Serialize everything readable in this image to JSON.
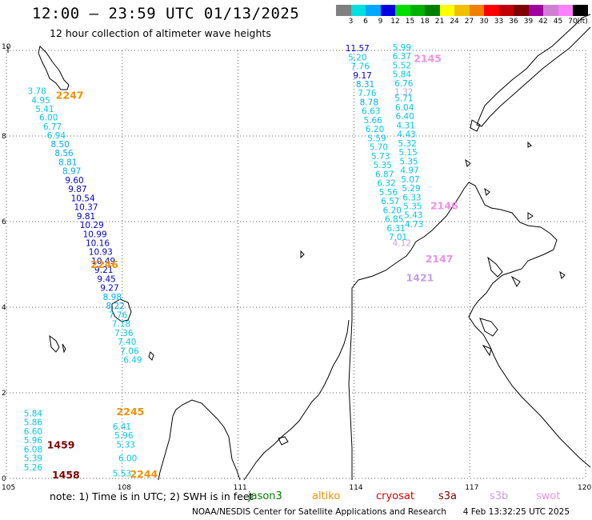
{
  "header": {
    "title": "12:00 – 23:59 UTC 01/13/2025",
    "subtitle": "12 hour collection of altimeter wave heights"
  },
  "colorbar": {
    "unit": "(ft)",
    "colors": [
      "#808080",
      "#00e0e0",
      "#00a8ff",
      "#0000e0",
      "#00e000",
      "#00b000",
      "#008000",
      "#ffff00",
      "#f0c000",
      "#f08000",
      "#ff0000",
      "#c00000",
      "#800000",
      "#a000a0",
      "#d080d0",
      "#ff80ff",
      "#000000"
    ],
    "ticks": [
      "3",
      "6",
      "9",
      "12",
      "15",
      "18",
      "21",
      "24",
      "27",
      "30",
      "33",
      "36",
      "39",
      "42",
      "45",
      "70"
    ]
  },
  "map": {
    "lat_labels": [
      "10",
      "8",
      "6",
      "4",
      "2",
      "0"
    ],
    "lon_labels": [
      "105",
      "108",
      "111",
      "114",
      "117",
      "120"
    ],
    "track_labels": [
      {
        "text": "2247",
        "color": "#f09000",
        "lon": 106.28,
        "lat": 8.87
      },
      {
        "text": "2246",
        "color": "#f09000",
        "lon": 107.18,
        "lat": 4.92
      },
      {
        "text": "2245",
        "color": "#f09000",
        "lon": 107.85,
        "lat": 1.48
      },
      {
        "text": "2244",
        "color": "#f09000",
        "lon": 108.2,
        "lat": 0.02
      },
      {
        "text": "1459",
        "color": "#800000",
        "lon": 106.05,
        "lat": 0.7
      },
      {
        "text": "1458",
        "color": "#800000",
        "lon": 106.18,
        "lat": 0.0
      },
      {
        "text": "2145",
        "color": "#f090e0",
        "lon": 115.55,
        "lat": 9.73
      },
      {
        "text": "2146",
        "color": "#f090e0",
        "lon": 115.98,
        "lat": 6.29
      },
      {
        "text": "2147",
        "color": "#f090e0",
        "lon": 115.85,
        "lat": 5.05
      },
      {
        "text": "1421",
        "color": "#c0a0e8",
        "lon": 115.35,
        "lat": 4.61
      }
    ],
    "wave_values": [
      {
        "v": "3.78",
        "c": "#00c8e8",
        "lon": 105.55,
        "lat": 8.98
      },
      {
        "v": "4.95",
        "c": "#00c8e8",
        "lon": 105.65,
        "lat": 8.77
      },
      {
        "v": "5.41",
        "c": "#00c8e8",
        "lon": 105.75,
        "lat": 8.56
      },
      {
        "v": "6.00",
        "c": "#00c8e8",
        "lon": 105.85,
        "lat": 8.36
      },
      {
        "v": "6.77",
        "c": "#00c8e8",
        "lon": 105.95,
        "lat": 8.15
      },
      {
        "v": "6.94",
        "c": "#00c8e8",
        "lon": 106.05,
        "lat": 7.94
      },
      {
        "v": "8.50",
        "c": "#00a8ff",
        "lon": 106.15,
        "lat": 7.74
      },
      {
        "v": "8.56",
        "c": "#00a8ff",
        "lon": 106.25,
        "lat": 7.53
      },
      {
        "v": "8.81",
        "c": "#00a8ff",
        "lon": 106.35,
        "lat": 7.32
      },
      {
        "v": "8.97",
        "c": "#00a8ff",
        "lon": 106.45,
        "lat": 7.11
      },
      {
        "v": "9.60",
        "c": "#0000d0",
        "lon": 106.52,
        "lat": 6.9
      },
      {
        "v": "9.87",
        "c": "#0000d0",
        "lon": 106.6,
        "lat": 6.69
      },
      {
        "v": "10.54",
        "c": "#0000d0",
        "lon": 106.67,
        "lat": 6.48
      },
      {
        "v": "10.37",
        "c": "#0000d0",
        "lon": 106.75,
        "lat": 6.27
      },
      {
        "v": "9.81",
        "c": "#0000d0",
        "lon": 106.82,
        "lat": 6.06
      },
      {
        "v": "10.29",
        "c": "#0000d0",
        "lon": 106.9,
        "lat": 5.85
      },
      {
        "v": "10.99",
        "c": "#0000d0",
        "lon": 106.98,
        "lat": 5.64
      },
      {
        "v": "10.16",
        "c": "#0000d0",
        "lon": 107.05,
        "lat": 5.43
      },
      {
        "v": "10.93",
        "c": "#0000d0",
        "lon": 107.13,
        "lat": 5.22
      },
      {
        "v": "10.49",
        "c": "#0000d0",
        "lon": 107.2,
        "lat": 5.01
      },
      {
        "v": "9.21",
        "c": "#0000d0",
        "lon": 107.28,
        "lat": 4.8
      },
      {
        "v": "9.45",
        "c": "#0000d0",
        "lon": 107.35,
        "lat": 4.59
      },
      {
        "v": "9.27",
        "c": "#0000d0",
        "lon": 107.43,
        "lat": 4.38
      },
      {
        "v": "8.98",
        "c": "#00a8ff",
        "lon": 107.5,
        "lat": 4.17
      },
      {
        "v": "8.22",
        "c": "#00a8ff",
        "lon": 107.58,
        "lat": 3.96
      },
      {
        "v": "7.76",
        "c": "#00c8e8",
        "lon": 107.65,
        "lat": 3.75
      },
      {
        "v": "7.18",
        "c": "#00c8e8",
        "lon": 107.73,
        "lat": 3.54
      },
      {
        "v": "7.36",
        "c": "#00c8e8",
        "lon": 107.8,
        "lat": 3.33
      },
      {
        "v": "7.40",
        "c": "#00c8e8",
        "lon": 107.88,
        "lat": 3.12
      },
      {
        "v": "7.06",
        "c": "#00c8e8",
        "lon": 107.95,
        "lat": 2.91
      },
      {
        "v": "6.49",
        "c": "#00c8e8",
        "lon": 108.03,
        "lat": 2.7
      },
      {
        "v": "5.84",
        "c": "#00c8e8",
        "lon": 105.45,
        "lat": 1.45
      },
      {
        "v": "5.86",
        "c": "#00c8e8",
        "lon": 105.45,
        "lat": 1.24
      },
      {
        "v": "6.60",
        "c": "#00c8e8",
        "lon": 105.45,
        "lat": 1.03
      },
      {
        "v": "5.96",
        "c": "#00c8e8",
        "lon": 105.45,
        "lat": 0.82
      },
      {
        "v": "6.08",
        "c": "#00c8e8",
        "lon": 105.45,
        "lat": 0.61
      },
      {
        "v": "5.39",
        "c": "#00c8e8",
        "lon": 105.45,
        "lat": 0.4
      },
      {
        "v": "5.26",
        "c": "#00c8e8",
        "lon": 105.45,
        "lat": 0.19
      },
      {
        "v": "6.41",
        "c": "#00c8e8",
        "lon": 107.75,
        "lat": 1.14
      },
      {
        "v": "5.96",
        "c": "#00c8e8",
        "lon": 107.8,
        "lat": 0.93
      },
      {
        "v": "5.33",
        "c": "#00c8e8",
        "lon": 107.85,
        "lat": 0.72
      },
      {
        "v": "6.00",
        "c": "#00c8e8",
        "lon": 107.9,
        "lat": 0.4
      },
      {
        "v": "5.53",
        "c": "#00c8e8",
        "lon": 107.75,
        "lat": 0.05
      },
      {
        "v": "11.57",
        "c": "#0000d0",
        "lon": 113.78,
        "lat": 9.98
      },
      {
        "v": "5.20",
        "c": "#00c8e8",
        "lon": 113.85,
        "lat": 9.77
      },
      {
        "v": "7.76",
        "c": "#00c8e8",
        "lon": 113.92,
        "lat": 9.56
      },
      {
        "v": "9.17",
        "c": "#0000d0",
        "lon": 113.98,
        "lat": 9.35
      },
      {
        "v": "8.31",
        "c": "#00a8ff",
        "lon": 114.05,
        "lat": 9.14
      },
      {
        "v": "7.76",
        "c": "#00c8e8",
        "lon": 114.1,
        "lat": 8.93
      },
      {
        "v": "8.78",
        "c": "#00a8ff",
        "lon": 114.15,
        "lat": 8.72
      },
      {
        "v": "6.63",
        "c": "#00c8e8",
        "lon": 114.2,
        "lat": 8.51
      },
      {
        "v": "5.66",
        "c": "#00c8e8",
        "lon": 114.25,
        "lat": 8.3
      },
      {
        "v": "6.20",
        "c": "#00c8e8",
        "lon": 114.3,
        "lat": 8.09
      },
      {
        "v": "5.59",
        "c": "#00c8e8",
        "lon": 114.35,
        "lat": 7.88
      },
      {
        "v": "5.70",
        "c": "#00c8e8",
        "lon": 114.4,
        "lat": 7.67
      },
      {
        "v": "5.73",
        "c": "#00c8e8",
        "lon": 114.45,
        "lat": 7.46
      },
      {
        "v": "5.35",
        "c": "#00c8e8",
        "lon": 114.5,
        "lat": 7.25
      },
      {
        "v": "6.87",
        "c": "#00c8e8",
        "lon": 114.55,
        "lat": 7.04
      },
      {
        "v": "6.32",
        "c": "#00c8e8",
        "lon": 114.6,
        "lat": 6.83
      },
      {
        "v": "5.56",
        "c": "#00c8e8",
        "lon": 114.65,
        "lat": 6.62
      },
      {
        "v": "6.57",
        "c": "#00c8e8",
        "lon": 114.7,
        "lat": 6.41
      },
      {
        "v": "6.20",
        "c": "#00c8e8",
        "lon": 114.75,
        "lat": 6.2
      },
      {
        "v": "6.85",
        "c": "#00c8e8",
        "lon": 114.8,
        "lat": 5.99
      },
      {
        "v": "6.31",
        "c": "#00c8e8",
        "lon": 114.85,
        "lat": 5.78
      },
      {
        "v": "7.01",
        "c": "#00c8e8",
        "lon": 114.9,
        "lat": 5.57
      },
      {
        "v": "5.99",
        "c": "#00c8e8",
        "lon": 115.0,
        "lat": 10.0
      },
      {
        "v": "6.37",
        "c": "#00c8e8",
        "lon": 115.0,
        "lat": 9.79
      },
      {
        "v": "5.52",
        "c": "#00c8e8",
        "lon": 115.0,
        "lat": 9.58
      },
      {
        "v": "5.84",
        "c": "#00c8e8",
        "lon": 115.0,
        "lat": 9.37
      },
      {
        "v": "6.76",
        "c": "#00c8e8",
        "lon": 115.05,
        "lat": 9.16
      },
      {
        "v": "5.71",
        "c": "#00c8e8",
        "lon": 115.05,
        "lat": 8.81
      },
      {
        "v": "6.04",
        "c": "#00c8e8",
        "lon": 115.07,
        "lat": 8.6
      },
      {
        "v": "6.40",
        "c": "#00c8e8",
        "lon": 115.08,
        "lat": 8.39
      },
      {
        "v": "4.31",
        "c": "#00c8e8",
        "lon": 115.1,
        "lat": 8.18
      },
      {
        "v": "4.43",
        "c": "#00c8e8",
        "lon": 115.12,
        "lat": 7.97
      },
      {
        "v": "5.32",
        "c": "#00c8e8",
        "lon": 115.14,
        "lat": 7.76
      },
      {
        "v": "5.15",
        "c": "#00c8e8",
        "lon": 115.16,
        "lat": 7.55
      },
      {
        "v": "5.35",
        "c": "#00c8e8",
        "lon": 115.18,
        "lat": 7.34
      },
      {
        "v": "4.97",
        "c": "#00c8e8",
        "lon": 115.2,
        "lat": 7.13
      },
      {
        "v": "5.07",
        "c": "#00c8e8",
        "lon": 115.22,
        "lat": 6.92
      },
      {
        "v": "5.29",
        "c": "#00c8e8",
        "lon": 115.24,
        "lat": 6.71
      },
      {
        "v": "6.33",
        "c": "#00c8e8",
        "lon": 115.26,
        "lat": 6.5
      },
      {
        "v": "5.35",
        "c": "#00c8e8",
        "lon": 115.28,
        "lat": 6.29
      },
      {
        "v": "5.43",
        "c": "#00c8e8",
        "lon": 115.3,
        "lat": 6.08
      },
      {
        "v": "4.73",
        "c": "#00c8e8",
        "lon": 115.32,
        "lat": 5.87
      },
      {
        "v": "4.12",
        "c": "#c0a0e8",
        "lon": 115.0,
        "lat": 5.43
      },
      {
        "v": "1.32",
        "c": "#c0a0e8",
        "lon": 115.05,
        "lat": 8.96
      }
    ]
  },
  "legend": {
    "note": "note:  1) Time is in UTC;  2) SWH is in feet",
    "satellites": [
      {
        "name": "jason3",
        "color": "#008000"
      },
      {
        "name": "altiko",
        "color": "#f09000"
      },
      {
        "name": "cryosat",
        "color": "#e00000"
      },
      {
        "name": "s3a",
        "color": "#800000"
      },
      {
        "name": "s3b",
        "color": "#c0a0e8"
      },
      {
        "name": "swot",
        "color": "#f090e0"
      }
    ]
  },
  "credit": {
    "org": "NOAA/NESDIS Center for Satellite Applications and Research",
    "timestamp": "4 Feb 13:32:25 UTC 2025"
  }
}
